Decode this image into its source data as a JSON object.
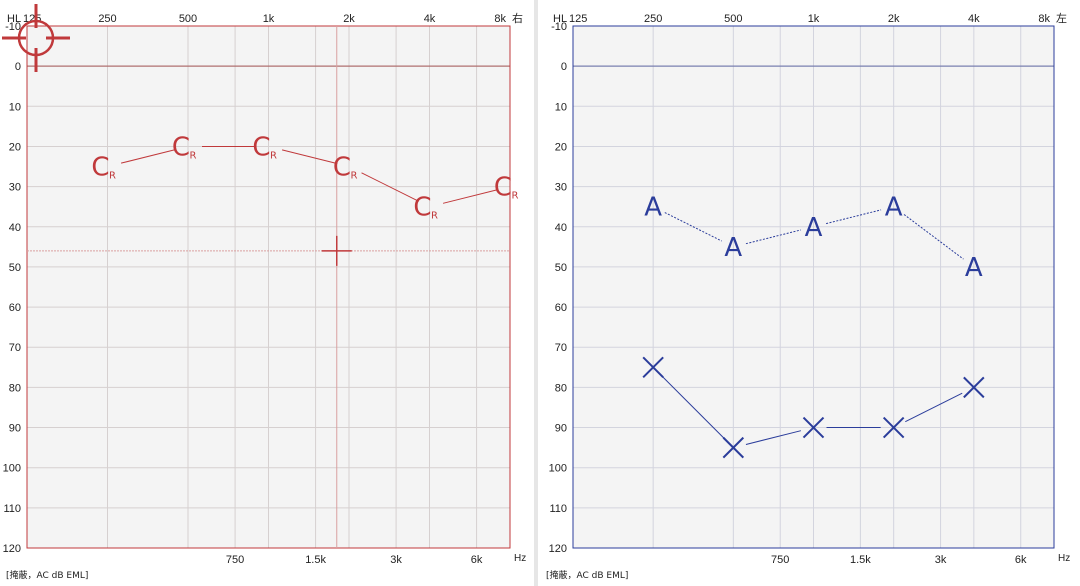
{
  "chart_data": [
    {
      "type": "line",
      "ear_label": "右",
      "hl_label": "HL",
      "unit_label": "Hz",
      "footer": "[掩蔽，AC dB EML]",
      "top_ticks": [
        "125",
        "250",
        "500",
        "1k",
        "2k",
        "4k",
        "8k"
      ],
      "bottom_ticks": [
        "750",
        "1.5k",
        "3k",
        "6k"
      ],
      "y_ticks": [
        "-10",
        "0",
        "10",
        "20",
        "30",
        "40",
        "50",
        "60",
        "70",
        "80",
        "90",
        "100",
        "110",
        "120"
      ],
      "ylim": [
        -10,
        120
      ],
      "y_inverted": true,
      "x_scale": "log2 frequency",
      "grid": true,
      "color": "#c0393b",
      "marker_symbol": "C",
      "marker_subscript": "R",
      "series": [
        {
          "x": [
            "250",
            "500",
            "1k",
            "2k",
            "4k",
            "8k"
          ],
          "y": [
            25,
            20,
            20,
            25,
            35,
            30
          ]
        }
      ],
      "cursor": {
        "x": "1.8k",
        "y": 46
      }
    },
    {
      "type": "line",
      "ear_label": "左",
      "hl_label": "HL",
      "unit_label": "Hz",
      "footer": "[掩蔽，AC dB EML]",
      "top_ticks": [
        "125",
        "250",
        "500",
        "1k",
        "2k",
        "4k",
        "8k"
      ],
      "bottom_ticks": [
        "750",
        "1.5k",
        "3k",
        "6k"
      ],
      "y_ticks": [
        "-10",
        "0",
        "10",
        "20",
        "30",
        "40",
        "50",
        "60",
        "70",
        "80",
        "90",
        "100",
        "110",
        "120"
      ],
      "ylim": [
        -10,
        120
      ],
      "y_inverted": true,
      "x_scale": "log2 frequency",
      "grid": true,
      "color": "#2b3d9b",
      "series": [
        {
          "marker_symbol": "A",
          "x": [
            "250",
            "500",
            "1k",
            "2k",
            "4k"
          ],
          "y": [
            35,
            45,
            40,
            35,
            50
          ]
        },
        {
          "marker_symbol": "×",
          "x": [
            "250",
            "500",
            "1k",
            "2k",
            "4k"
          ],
          "y": [
            75,
            95,
            90,
            90,
            80
          ]
        }
      ]
    }
  ]
}
